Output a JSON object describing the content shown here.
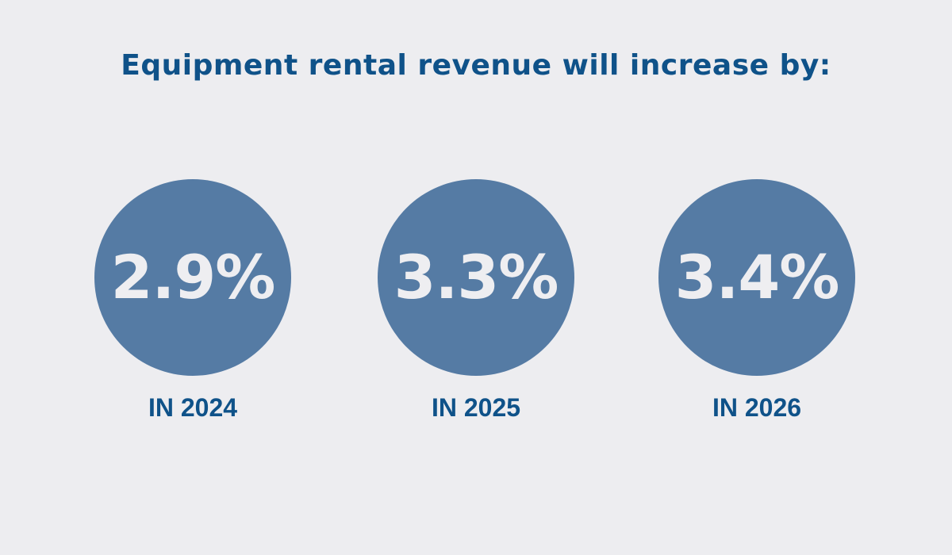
{
  "headline": "Equipment rental revenue will increase by:",
  "colors": {
    "background": "#ededf0",
    "headline": "#0f5289",
    "circle": "#557ba4",
    "value": "#eeeef1",
    "year": "#0f5289"
  },
  "stats": [
    {
      "value": "2.9%",
      "year": "IN 2024"
    },
    {
      "value": "3.3%",
      "year": "IN 2025"
    },
    {
      "value": "3.4%",
      "year": "IN 2026"
    }
  ]
}
